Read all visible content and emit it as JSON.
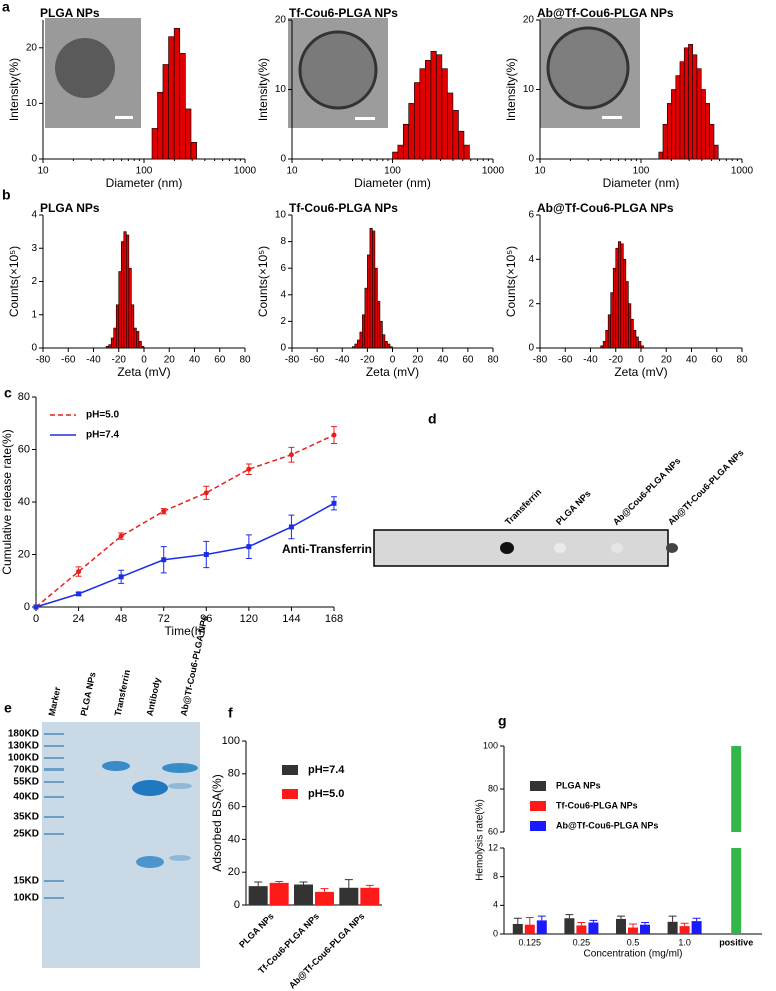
{
  "panel_labels": [
    "a",
    "b",
    "c",
    "d",
    "e",
    "f",
    "g"
  ],
  "chart_data": [
    {
      "type": "histogram",
      "title": "PLGA NPs",
      "x_label": "Diameter (nm)",
      "y_label": "Intensity(%)",
      "log_x": true,
      "xlim": [
        10,
        1000
      ],
      "xticks": [
        10,
        100,
        1000
      ],
      "ylim": [
        0,
        25
      ],
      "yticks": [
        0,
        10,
        20
      ],
      "color": "#e00000",
      "bins": [
        120,
        136,
        154,
        175,
        199,
        226,
        257,
        292,
        332
      ],
      "values": [
        5.5,
        12,
        17,
        22,
        23.5,
        19,
        9,
        3
      ]
    },
    {
      "type": "histogram",
      "title": "Tf-Cou6-PLGA NPs",
      "x_label": "Diameter (nm)",
      "y_label": "Intensity(%)",
      "log_x": true,
      "xlim": [
        10,
        1000
      ],
      "xticks": [
        10,
        100,
        1000
      ],
      "ylim": [
        0,
        20
      ],
      "yticks": [
        0,
        10,
        20
      ],
      "color": "#e00000",
      "bins": [
        100,
        113,
        128,
        145,
        165,
        187,
        212,
        241,
        273,
        310,
        352,
        399,
        453,
        514,
        583
      ],
      "values": [
        1,
        2,
        5,
        8,
        11,
        13,
        14.2,
        15.5,
        15,
        13,
        9.5,
        7,
        4,
        2
      ]
    },
    {
      "type": "histogram",
      "title": "Ab@Tf-Cou6-PLGA NPs",
      "x_label": "Diameter (nm)",
      "y_label": "Intensity(%)",
      "log_x": true,
      "xlim": [
        10,
        1000
      ],
      "xticks": [
        10,
        100,
        1000
      ],
      "ylim": [
        0,
        20
      ],
      "yticks": [
        0,
        10,
        20
      ],
      "color": "#e00000",
      "bins": [
        150,
        165,
        182,
        200,
        221,
        243,
        268,
        295,
        325,
        358,
        395,
        435,
        479,
        528,
        582
      ],
      "values": [
        1,
        5,
        8,
        10,
        12,
        14,
        16,
        16.5,
        15,
        13,
        10,
        8,
        5,
        2
      ]
    },
    {
      "type": "histogram",
      "title": "PLGA NPs",
      "x_label": "Zeta (mV)",
      "y_label": "Counts(×10⁵)",
      "log_x": false,
      "xlim": [
        -80,
        80
      ],
      "xticks": [
        -80,
        -60,
        -40,
        -20,
        0,
        20,
        40,
        60,
        80
      ],
      "ylim": [
        0,
        4
      ],
      "yticks": [
        0,
        1,
        2,
        3,
        4
      ],
      "color": "#e00000",
      "bins": [
        -30,
        -28,
        -26,
        -24,
        -22,
        -20,
        -18,
        -16,
        -14,
        -12,
        -10,
        -8,
        -6,
        -4,
        -2,
        0
      ],
      "values": [
        0.05,
        0.1,
        0.3,
        0.6,
        1.3,
        2.3,
        3.2,
        3.5,
        3.4,
        2.4,
        1.3,
        0.6,
        0.5,
        0.2,
        0.05
      ]
    },
    {
      "type": "histogram",
      "title": "Tf-Cou6-PLGA NPs",
      "x_label": "Zeta (mV)",
      "y_label": "Counts(×10⁵)",
      "log_x": false,
      "xlim": [
        -80,
        80
      ],
      "xticks": [
        -80,
        -60,
        -40,
        -20,
        0,
        20,
        40,
        60,
        80
      ],
      "ylim": [
        0,
        10
      ],
      "yticks": [
        0,
        2,
        4,
        6,
        8,
        10
      ],
      "color": "#e00000",
      "bins": [
        -32,
        -30,
        -28,
        -26,
        -24,
        -22,
        -20,
        -18,
        -16,
        -14,
        -12,
        -10,
        -8,
        -6,
        -4,
        -2,
        0
      ],
      "values": [
        0.1,
        0.3,
        0.6,
        1.2,
        2.5,
        4.5,
        7,
        9,
        8.8,
        6,
        3.5,
        2,
        1,
        0.5,
        0.3,
        0.1
      ]
    },
    {
      "type": "histogram",
      "title": "Ab@Tf-Cou6-PLGA NPs",
      "x_label": "Zeta (mV)",
      "y_label": "Counts(×10⁵)",
      "log_x": false,
      "xlim": [
        -80,
        80
      ],
      "xticks": [
        -80,
        -60,
        -40,
        -20,
        0,
        20,
        40,
        60,
        80
      ],
      "ylim": [
        0,
        6
      ],
      "yticks": [
        0,
        2,
        4,
        6
      ],
      "color": "#e00000",
      "bins": [
        -32,
        -30,
        -28,
        -26,
        -24,
        -22,
        -20,
        -18,
        -16,
        -14,
        -12,
        -10,
        -8,
        -6,
        -4,
        -2,
        0,
        2
      ],
      "values": [
        0.1,
        0.3,
        0.8,
        1.5,
        2.5,
        3.6,
        4.5,
        4.8,
        4.7,
        4,
        3,
        2,
        1.3,
        0.8,
        0.5,
        0.3,
        0.1
      ]
    },
    {
      "type": "line",
      "x_label": "Time(h)",
      "y_label": "Cumulative release rate(%)",
      "legend": "top-left",
      "x": [
        0,
        24,
        48,
        72,
        96,
        120,
        144,
        168
      ],
      "xlim": [
        0,
        168
      ],
      "xticks": [
        0,
        24,
        48,
        72,
        96,
        120,
        144,
        168
      ],
      "ylim": [
        0,
        80
      ],
      "yticks": [
        0,
        20,
        40,
        60,
        80
      ],
      "series": [
        {
          "name": "pH=5.0",
          "color": "#e8201c",
          "line_style": "dashed",
          "values": [
            0,
            13.5,
            27,
            36.5,
            43.5,
            52.5,
            58,
            65.5
          ],
          "errors": [
            0,
            1.8,
            1.2,
            1,
            2.5,
            2,
            2.8,
            3.2
          ]
        },
        {
          "name": "pH=7.4",
          "color": "#1c2ee8",
          "line_style": "solid",
          "values": [
            0,
            5,
            11.5,
            18,
            20,
            23,
            30.5,
            39.5
          ],
          "errors": [
            0,
            0.6,
            2.5,
            5,
            5,
            4.5,
            4.5,
            2.5
          ]
        }
      ]
    },
    {
      "type": "grouped_bar",
      "y_label": "Adsorbed BSA(%)",
      "legend": "top-left",
      "categories": [
        "PLGA NPs",
        "Tf-Cou6-PLGA NPs",
        "Ab@Tf-Cou6-PLGA NPs"
      ],
      "ylim": [
        0,
        100
      ],
      "yticks": [
        0,
        20,
        40,
        60,
        80,
        100
      ],
      "series": [
        {
          "name": "pH=7.4",
          "color": "#333333",
          "values": [
            11.5,
            12.5,
            10.5
          ],
          "errors": [
            2.5,
            1.5,
            5
          ]
        },
        {
          "name": "pH=5.0",
          "color": "#ff1a1a",
          "values": [
            13.5,
            8,
            10.5
          ],
          "errors": [
            0.8,
            2,
            1.5
          ]
        }
      ]
    },
    {
      "type": "broken_bar",
      "x_label": "Concentration (mg/ml)",
      "y_label": "Hemolysis rate(%)",
      "legend": "top-left",
      "categories": [
        "0.125",
        "0.25",
        "0.5",
        "1.0",
        "positive"
      ],
      "ylim": [
        0,
        12
      ],
      "yticks": [
        0,
        4,
        8,
        12
      ],
      "ylim_upper": [
        60,
        100
      ],
      "yticks_upper": [
        60,
        80,
        100
      ],
      "series": [
        {
          "name": "PLGA NPs",
          "color": "#333333",
          "values": [
            1.4,
            2.2,
            2.1,
            1.7,
            null
          ],
          "errors": [
            0.8,
            0.5,
            0.4,
            0.8,
            null
          ]
        },
        {
          "name": "Tf-Cou6-PLGA NPs",
          "color": "#ff1a1a",
          "values": [
            1.3,
            1.2,
            0.9,
            1.1,
            null
          ],
          "errors": [
            1.0,
            0.4,
            0.5,
            0.4,
            null
          ]
        },
        {
          "name": "Ab@Tf-Cou6-PLGA NPs",
          "color": "#1a1aff",
          "values": [
            1.9,
            1.6,
            1.3,
            1.8,
            null
          ],
          "errors": [
            0.6,
            0.3,
            0.3,
            0.4,
            null
          ]
        }
      ],
      "positive": {
        "value": 100,
        "color": "#33b54a"
      }
    }
  ],
  "blot": {
    "row_label": "Anti-Transferrin",
    "lanes": [
      "Transferrin",
      "PLGA NPs",
      "Ab@Cou6-PLGA NPs",
      "Ab@Tf-Cou6-PLGA NPs"
    ]
  },
  "gel": {
    "lanes": [
      "Marker",
      "PLGA NPs",
      "Transferrin",
      "Antibody",
      "Ab@Tf-Cou6-PLGA NPs"
    ],
    "markers": [
      "180KD",
      "130KD",
      "100KD",
      "70KD",
      "55KD",
      "40KD",
      "35KD",
      "25KD",
      "15KD",
      "10KD"
    ]
  }
}
